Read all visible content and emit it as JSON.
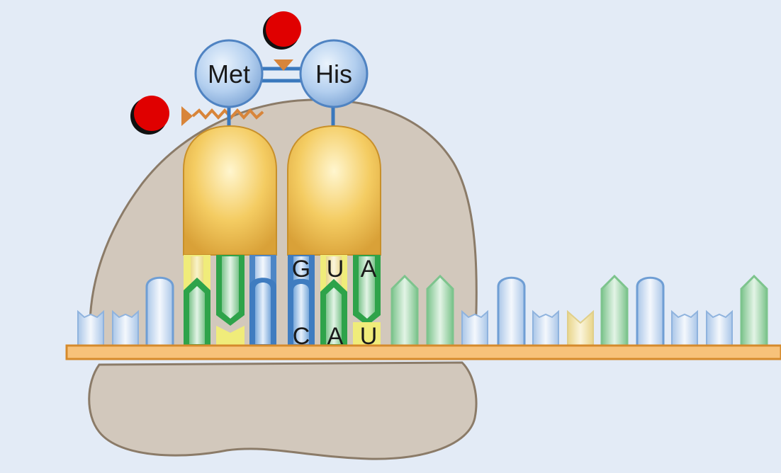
{
  "amino_acids": {
    "first": "Met",
    "second": "His"
  },
  "anticodon": [
    "G",
    "U",
    "A"
  ],
  "codon": [
    "C",
    "A",
    "U"
  ],
  "colors": {
    "background": "#e3ebf6",
    "ribosome": "#d2c8bc",
    "ribosome_outline": "#8b7b68",
    "trna_body": "#f0c050",
    "amino_acid": "#a8c6ec",
    "mrna_strand": "#f5b860",
    "nucleotide_blue": "#4d86c6",
    "nucleotide_green": "#2ea34a",
    "nucleotide_yellow": "#f2e6a0",
    "ribosome_marker": "#e00000"
  }
}
